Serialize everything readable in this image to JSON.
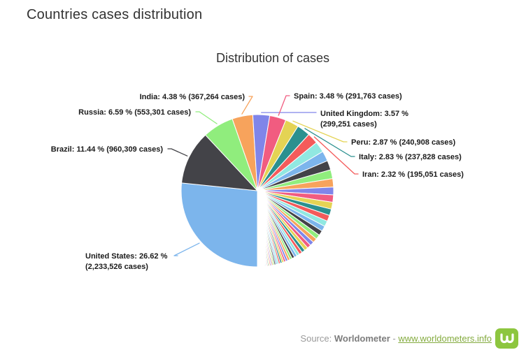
{
  "page": {
    "title": "Countries cases distribution"
  },
  "chart_data": {
    "type": "pie",
    "title": "Distribution of cases",
    "legend": "off",
    "start_angle_deg": 180,
    "direction": "clockwise",
    "slice_border_color": "#ffffff",
    "palette": [
      "#7cb5ec",
      "#434348",
      "#90ed7d",
      "#f7a35c",
      "#8085e9",
      "#f15c80",
      "#e4d354",
      "#2b908f",
      "#f45b5b",
      "#91e8e1"
    ],
    "labeled_slices": [
      {
        "name": "United States",
        "percent": 26.62,
        "cases": 2233526,
        "label_lines": [
          "United States: 26.62 %",
          "(2,233,526 cases)"
        ]
      },
      {
        "name": "Brazil",
        "percent": 11.44,
        "cases": 960309,
        "label_lines": [
          "Brazil: 11.44 % (960,309 cases)"
        ]
      },
      {
        "name": "Russia",
        "percent": 6.59,
        "cases": 553301,
        "label_lines": [
          "Russia: 6.59 % (553,301 cases)"
        ]
      },
      {
        "name": "India",
        "percent": 4.38,
        "cases": 367264,
        "label_lines": [
          "India: 4.38 % (367,264 cases)"
        ]
      },
      {
        "name": "United Kingdom",
        "percent": 3.57,
        "cases": 299251,
        "label_lines": [
          "United Kingdom: 3.57 %",
          "(299,251 cases)"
        ]
      },
      {
        "name": "Spain",
        "percent": 3.48,
        "cases": 291763,
        "label_lines": [
          "Spain: 3.48 % (291,763 cases)"
        ]
      },
      {
        "name": "Peru",
        "percent": 2.87,
        "cases": 240908,
        "label_lines": [
          "Peru: 2.87 % (240,908 cases)"
        ]
      },
      {
        "name": "Italy",
        "percent": 2.83,
        "cases": 237828,
        "label_lines": [
          "Italy: 2.83 % (237,828 cases)"
        ]
      },
      {
        "name": "Iran",
        "percent": 2.32,
        "cases": 195051,
        "label_lines": [
          "Iran: 2.32 % (195,051 cases)"
        ]
      }
    ],
    "others_unlabeled_percents": [
      2.27,
      2.13,
      1.99,
      1.87,
      1.75,
      1.64,
      1.54,
      1.44,
      1.35,
      1.27,
      1.19,
      1.11,
      1.04,
      0.98,
      0.92,
      0.86,
      0.81,
      0.76,
      0.71,
      0.66,
      0.62,
      0.58,
      0.55,
      0.51,
      0.48,
      0.45,
      0.42,
      0.4,
      0.37,
      0.35,
      0.33,
      0.31,
      0.29,
      0.27,
      0.25,
      0.24,
      0.22,
      0.21,
      0.2,
      0.18,
      0.17,
      0.16,
      0.15,
      0.14,
      0.13,
      0.12,
      0.12,
      0.11,
      0.1,
      0.1,
      0.09,
      0.08,
      0.08,
      0.07,
      0.07,
      0.06,
      0.06,
      0.06,
      0.05,
      0.05
    ]
  },
  "footer": {
    "source_label": "Source: ",
    "source_name": "Worldometer",
    "separator": " - ",
    "link_text": "www.worldometers.info",
    "link_color": "#84ab3f",
    "logo_icon": "worldometer-w-logo",
    "logo_color": "#8dc63f"
  }
}
